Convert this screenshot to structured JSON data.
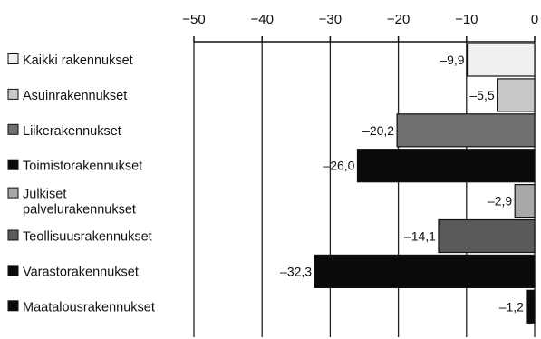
{
  "chart_data": {
    "type": "bar",
    "orientation": "horizontal",
    "title": "",
    "xlabel": "",
    "ylabel": "",
    "xlim": [
      -50,
      0
    ],
    "x_ticks": [
      -50,
      -40,
      -30,
      -20,
      -10,
      0
    ],
    "x_tick_labels": [
      "−50",
      "−40",
      "−30",
      "−20",
      "−10",
      "0"
    ],
    "x_axis_position": "top",
    "grid": true,
    "legend": "left",
    "categories": [
      {
        "name": "Kaikki rakennukset",
        "lines": [
          "Kaikki rakennukset"
        ],
        "value": -9.9,
        "value_label": "–9,9",
        "color": "#f0f0f0"
      },
      {
        "name": "Asuinrakennukset",
        "lines": [
          "Asuinrakennukset"
        ],
        "value": -5.5,
        "value_label": "–5,5",
        "color": "#c8c8c8"
      },
      {
        "name": "Liikerakennukset",
        "lines": [
          "Liikerakennukset"
        ],
        "value": -20.2,
        "value_label": "–20,2",
        "color": "#707070"
      },
      {
        "name": "Toimistorakennukset",
        "lines": [
          "Toimistorakennukset"
        ],
        "value": -26.0,
        "value_label": "–26,0",
        "color": "#0a0a0a"
      },
      {
        "name": "Julkiset palvelurakennukset",
        "lines": [
          "Julkiset",
          "palvelurakennukset"
        ],
        "value": -2.9,
        "value_label": "–2,9",
        "color": "#a8a8a8"
      },
      {
        "name": "Teollisuusrakennukset",
        "lines": [
          "Teollisuusrakennukset"
        ],
        "value": -14.1,
        "value_label": "–14,1",
        "color": "#5a5a5a"
      },
      {
        "name": "Varastorakennukset",
        "lines": [
          "Varastorakennukset"
        ],
        "value": -32.3,
        "value_label": "–32,3",
        "color": "#0a0a0a"
      },
      {
        "name": "Maatalousrakennukset",
        "lines": [
          "Maatalousrakennukset"
        ],
        "value": -1.2,
        "value_label": "–1,2",
        "color": "#0a0a0a"
      }
    ]
  }
}
